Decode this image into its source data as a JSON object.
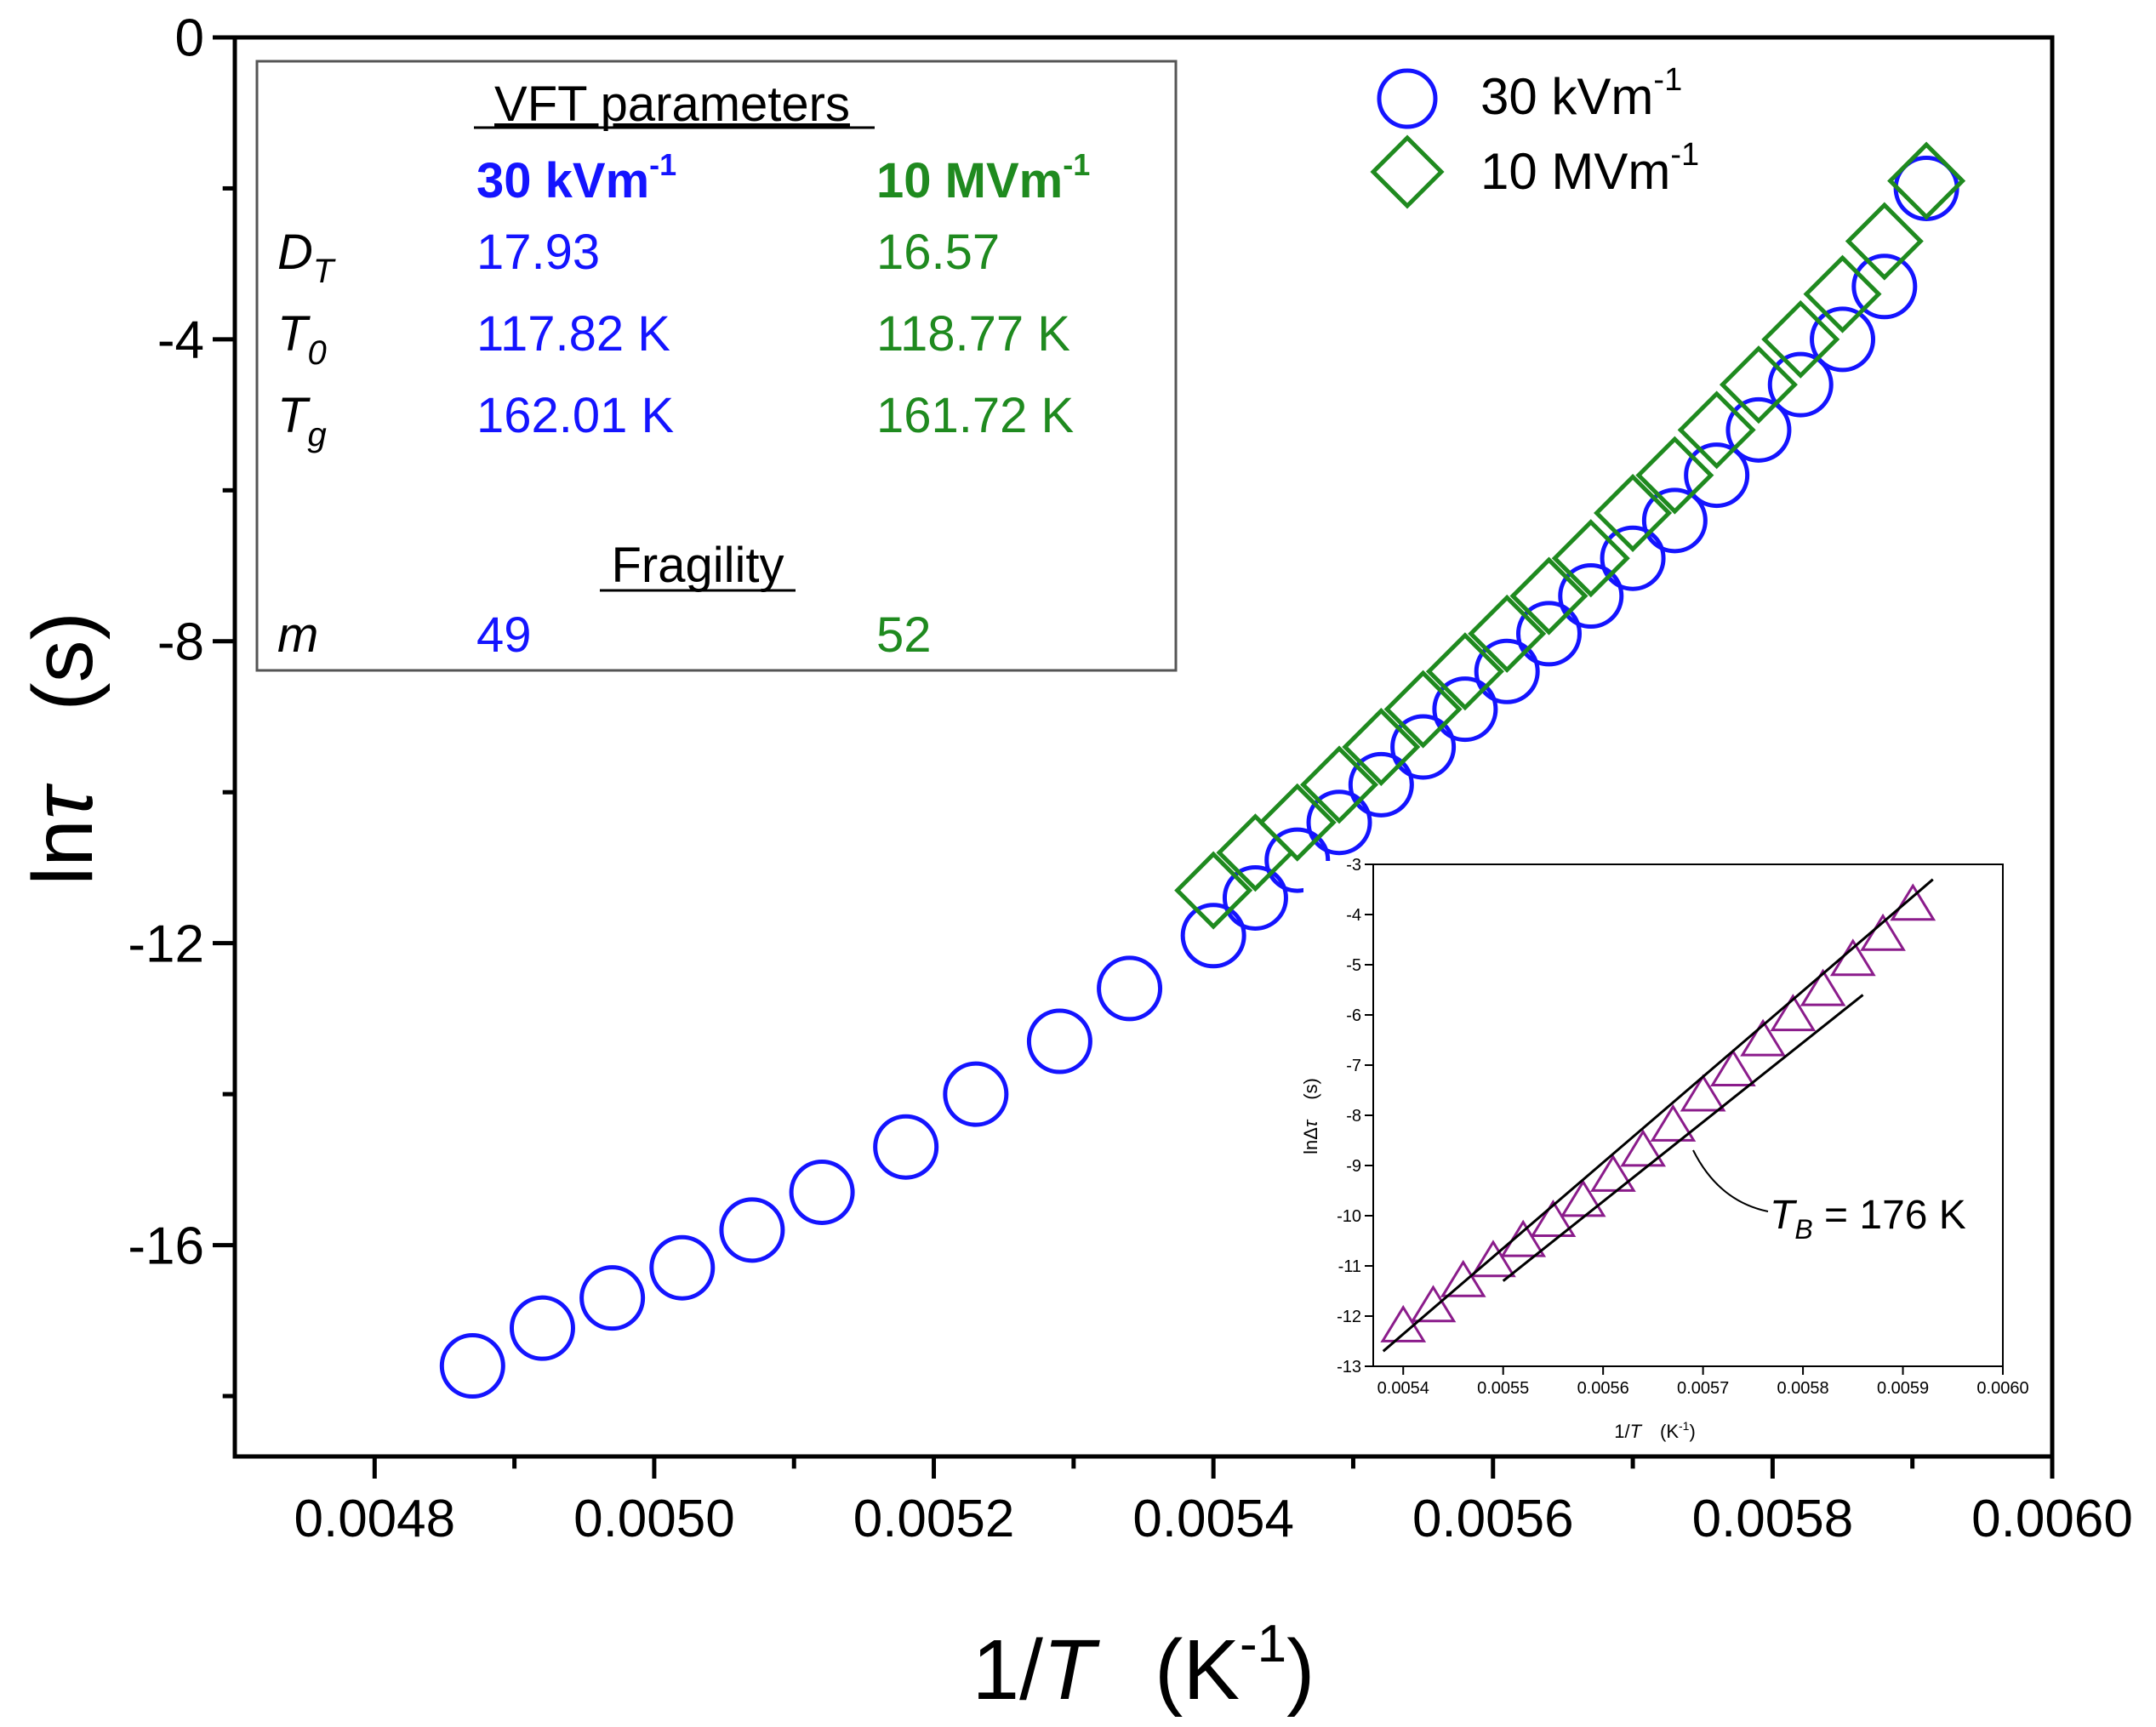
{
  "colors": {
    "series_30kV": "#1414ff",
    "series_10MV": "#1f8a1f",
    "inset_series": "#8b1c8b",
    "axis": "#000000",
    "table_border": "#555555"
  },
  "chart_data": [
    {
      "id": "main",
      "type": "scatter",
      "xlabel": {
        "prefix": "1/",
        "var": "T",
        "unit": "(K",
        "sup": "-1",
        "close": ")"
      },
      "ylabel": {
        "fn": "ln",
        "var": "τ",
        "unit": "(s)"
      },
      "xlim": [
        0.0047,
        0.006
      ],
      "ylim": [
        -18.8,
        0
      ],
      "xticks": [
        0.0048,
        0.005,
        0.0052,
        0.0054,
        0.0056,
        0.0058,
        0.006
      ],
      "xtick_labels": [
        "0.0048",
        "0.0050",
        "0.0052",
        "0.0054",
        "0.0056",
        "0.0058",
        "0.0060"
      ],
      "yticks": [
        0,
        -4,
        -8,
        -12,
        -16
      ],
      "ytick_labels": [
        "0",
        "-4",
        "-8",
        "-12",
        "-16"
      ],
      "legend": [
        {
          "marker": "circle",
          "label": "30 kVm",
          "sup": "-1"
        },
        {
          "marker": "diamond",
          "label": "10 MVm",
          "sup": "-1"
        }
      ],
      "series": [
        {
          "name": "30 kVm-1",
          "marker": "circle",
          "x": [
            0.00487,
            0.00492,
            0.00497,
            0.00502,
            0.00507,
            0.00512,
            0.00518,
            0.00523,
            0.00529,
            0.00534,
            0.0054,
            0.00543,
            0.00546,
            0.00549,
            0.00552,
            0.00555,
            0.00558,
            0.00561,
            0.00564,
            0.00567,
            0.0057,
            0.00573,
            0.00576,
            0.00579,
            0.00582,
            0.00585,
            0.00588,
            0.00591
          ],
          "y": [
            -17.6,
            -17.1,
            -16.7,
            -16.3,
            -15.8,
            -15.3,
            -14.7,
            -14.0,
            -13.3,
            -12.6,
            -11.9,
            -11.4,
            -10.9,
            -10.4,
            -9.9,
            -9.4,
            -8.9,
            -8.4,
            -7.9,
            -7.4,
            -6.9,
            -6.4,
            -5.8,
            -5.2,
            -4.6,
            -4.0,
            -3.3,
            -2.0
          ]
        },
        {
          "name": "10 MVm-1",
          "marker": "diamond",
          "x": [
            0.0054,
            0.00543,
            0.00546,
            0.00549,
            0.00552,
            0.00555,
            0.00558,
            0.00561,
            0.00564,
            0.00567,
            0.0057,
            0.00573,
            0.00576,
            0.00579,
            0.00582,
            0.00585,
            0.00588,
            0.00591
          ],
          "y": [
            -11.3,
            -10.8,
            -10.4,
            -9.9,
            -9.4,
            -8.9,
            -8.4,
            -7.9,
            -7.4,
            -6.9,
            -6.3,
            -5.8,
            -5.2,
            -4.6,
            -4.0,
            -3.4,
            -2.7,
            -1.9
          ]
        }
      ]
    },
    {
      "id": "inset",
      "type": "scatter",
      "xlabel": {
        "prefix": "1/",
        "var": "T",
        "unit": "(K",
        "sup": "-1",
        "close": ")"
      },
      "ylabel": {
        "fn": "lnΔ",
        "var": "τ",
        "unit": "(s)"
      },
      "xlim": [
        0.00537,
        0.006
      ],
      "ylim": [
        -13,
        -3
      ],
      "xticks": [
        0.0054,
        0.0055,
        0.0056,
        0.0057,
        0.0058,
        0.0059,
        0.006
      ],
      "xtick_labels": [
        "0.0054",
        "0.0055",
        "0.0056",
        "0.0057",
        "0.0058",
        "0.0059",
        "0.0060"
      ],
      "yticks": [
        -3,
        -4,
        -5,
        -6,
        -7,
        -8,
        -9,
        -10,
        -11,
        -12,
        -13
      ],
      "ytick_labels": [
        "-3",
        "-4",
        "-5",
        "-6",
        "-7",
        "-8",
        "-9",
        "-10",
        "-11",
        "-12",
        "-13"
      ],
      "series": [
        {
          "name": "lnΔτ",
          "marker": "triangle",
          "x": [
            0.0054,
            0.00543,
            0.00546,
            0.00549,
            0.00552,
            0.00555,
            0.00558,
            0.00561,
            0.00564,
            0.00567,
            0.0057,
            0.00573,
            0.00576,
            0.00579,
            0.00582,
            0.00585,
            0.00588,
            0.00591
          ],
          "y": [
            -12.2,
            -11.8,
            -11.3,
            -10.9,
            -10.5,
            -10.1,
            -9.7,
            -9.2,
            -8.7,
            -8.2,
            -7.6,
            -7.1,
            -6.5,
            -6.0,
            -5.5,
            -4.9,
            -4.4,
            -3.8
          ]
        }
      ],
      "fit_lines": [
        {
          "x": [
            0.00538,
            0.00593
          ],
          "y": [
            -12.7,
            -3.3
          ]
        },
        {
          "x": [
            0.0055,
            0.00586
          ],
          "y": [
            -11.3,
            -5.6
          ]
        }
      ],
      "annotation": {
        "var": "T",
        "sub": "B",
        "text": " = 176 K",
        "x": 0.00566,
        "y": -8.3
      }
    }
  ],
  "table": {
    "heading": "VFT parameters",
    "col1": {
      "text": "30 kVm",
      "sup": "-1"
    },
    "col2": {
      "text": "10 MVm",
      "sup": "-1"
    },
    "rows": [
      {
        "sym": "D",
        "sub": "T",
        "v1": "17.93",
        "v2": "16.57"
      },
      {
        "sym": "T",
        "sub": "0",
        "v1": "117.82 K",
        "v2": "118.77 K"
      },
      {
        "sym": "T",
        "sub": "g",
        "v1": "162.01 K",
        "v2": "161.72 K"
      }
    ],
    "fragility_heading": "Fragility",
    "fragility": {
      "sym": "m",
      "v1": "49",
      "v2": "52"
    }
  }
}
